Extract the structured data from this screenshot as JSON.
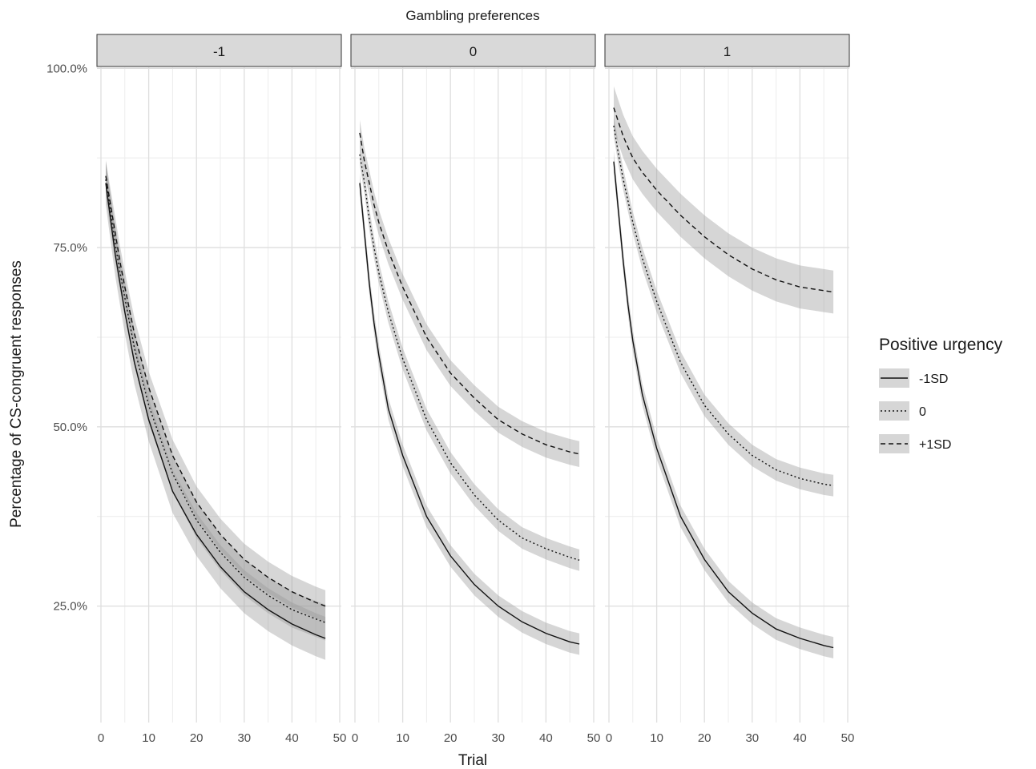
{
  "chart_data": {
    "type": "line",
    "title": "Gambling preferences",
    "xlabel": "Trial",
    "ylabel": "Percentage of CS-congruent responses",
    "xlim": [
      0,
      50
    ],
    "ylim": [
      0.13,
      1.0
    ],
    "x_ticks": [
      "0",
      "10",
      "20",
      "30",
      "40",
      "50"
    ],
    "y_ticks": [
      {
        "value": 0.25,
        "label": "25.0%"
      },
      {
        "value": 0.5,
        "label": "50.0%"
      },
      {
        "value": 0.75,
        "label": "75.0%"
      },
      {
        "value": 1.0,
        "label": "100.0%"
      }
    ],
    "grid": true,
    "x": [
      1,
      2,
      3,
      4,
      5,
      7,
      10,
      15,
      20,
      25,
      30,
      35,
      40,
      45,
      47
    ],
    "legend": {
      "title": "Positive urgency",
      "placement": "right",
      "entries": [
        {
          "label": "-1SD",
          "dash": "solid"
        },
        {
          "label": "0",
          "dash": "dotted"
        },
        {
          "label": "+1SD",
          "dash": "dashed"
        }
      ]
    },
    "facets": [
      {
        "label": "-1",
        "series": [
          {
            "name": "-1SD",
            "dash": "solid",
            "ci": 0.03,
            "values": [
              0.84,
              0.79,
              0.74,
              0.7,
              0.66,
              0.59,
              0.51,
              0.41,
              0.35,
              0.305,
              0.27,
              0.245,
              0.225,
              0.21,
              0.205
            ]
          },
          {
            "name": "0",
            "dash": "dotted",
            "ci": 0.025,
            "values": [
              0.845,
              0.8,
              0.755,
              0.715,
              0.68,
              0.61,
              0.53,
              0.435,
              0.37,
              0.325,
              0.29,
              0.265,
              0.245,
              0.232,
              0.227
            ]
          },
          {
            "name": "+1SD",
            "dash": "dashed",
            "ci": 0.022,
            "values": [
              0.85,
              0.81,
              0.77,
              0.73,
              0.695,
              0.63,
              0.555,
              0.46,
              0.395,
              0.35,
              0.315,
              0.29,
              0.27,
              0.255,
              0.25
            ]
          }
        ]
      },
      {
        "label": "0",
        "series": [
          {
            "name": "-1SD",
            "dash": "solid",
            "ci": 0.015,
            "values": [
              0.84,
              0.77,
              0.7,
              0.645,
              0.6,
              0.525,
              0.46,
              0.375,
              0.32,
              0.28,
              0.25,
              0.228,
              0.212,
              0.2,
              0.197
            ]
          },
          {
            "name": "0",
            "dash": "dotted",
            "ci": 0.015,
            "values": [
              0.88,
              0.84,
              0.79,
              0.75,
              0.715,
              0.66,
              0.595,
              0.51,
              0.45,
              0.405,
              0.37,
              0.345,
              0.33,
              0.318,
              0.314
            ]
          },
          {
            "name": "+1SD",
            "dash": "dashed",
            "ci": 0.018,
            "values": [
              0.91,
              0.87,
              0.84,
              0.81,
              0.785,
              0.745,
              0.695,
              0.625,
              0.575,
              0.54,
              0.51,
              0.49,
              0.475,
              0.465,
              0.462
            ]
          }
        ]
      },
      {
        "label": "1",
        "series": [
          {
            "name": "-1SD",
            "dash": "solid",
            "ci": 0.015,
            "values": [
              0.87,
              0.8,
              0.73,
              0.67,
              0.62,
              0.545,
              0.47,
              0.375,
              0.315,
              0.27,
              0.24,
              0.218,
              0.205,
              0.195,
              0.192
            ]
          },
          {
            "name": "0",
            "dash": "dotted",
            "ci": 0.015,
            "values": [
              0.92,
              0.88,
              0.845,
              0.815,
              0.785,
              0.735,
              0.675,
              0.59,
              0.53,
              0.49,
              0.46,
              0.44,
              0.428,
              0.42,
              0.418
            ]
          },
          {
            "name": "+1SD",
            "dash": "dashed",
            "ci": 0.03,
            "values": [
              0.945,
              0.925,
              0.905,
              0.89,
              0.875,
              0.855,
              0.83,
              0.795,
              0.765,
              0.74,
              0.72,
              0.705,
              0.695,
              0.69,
              0.688
            ]
          }
        ]
      }
    ]
  }
}
